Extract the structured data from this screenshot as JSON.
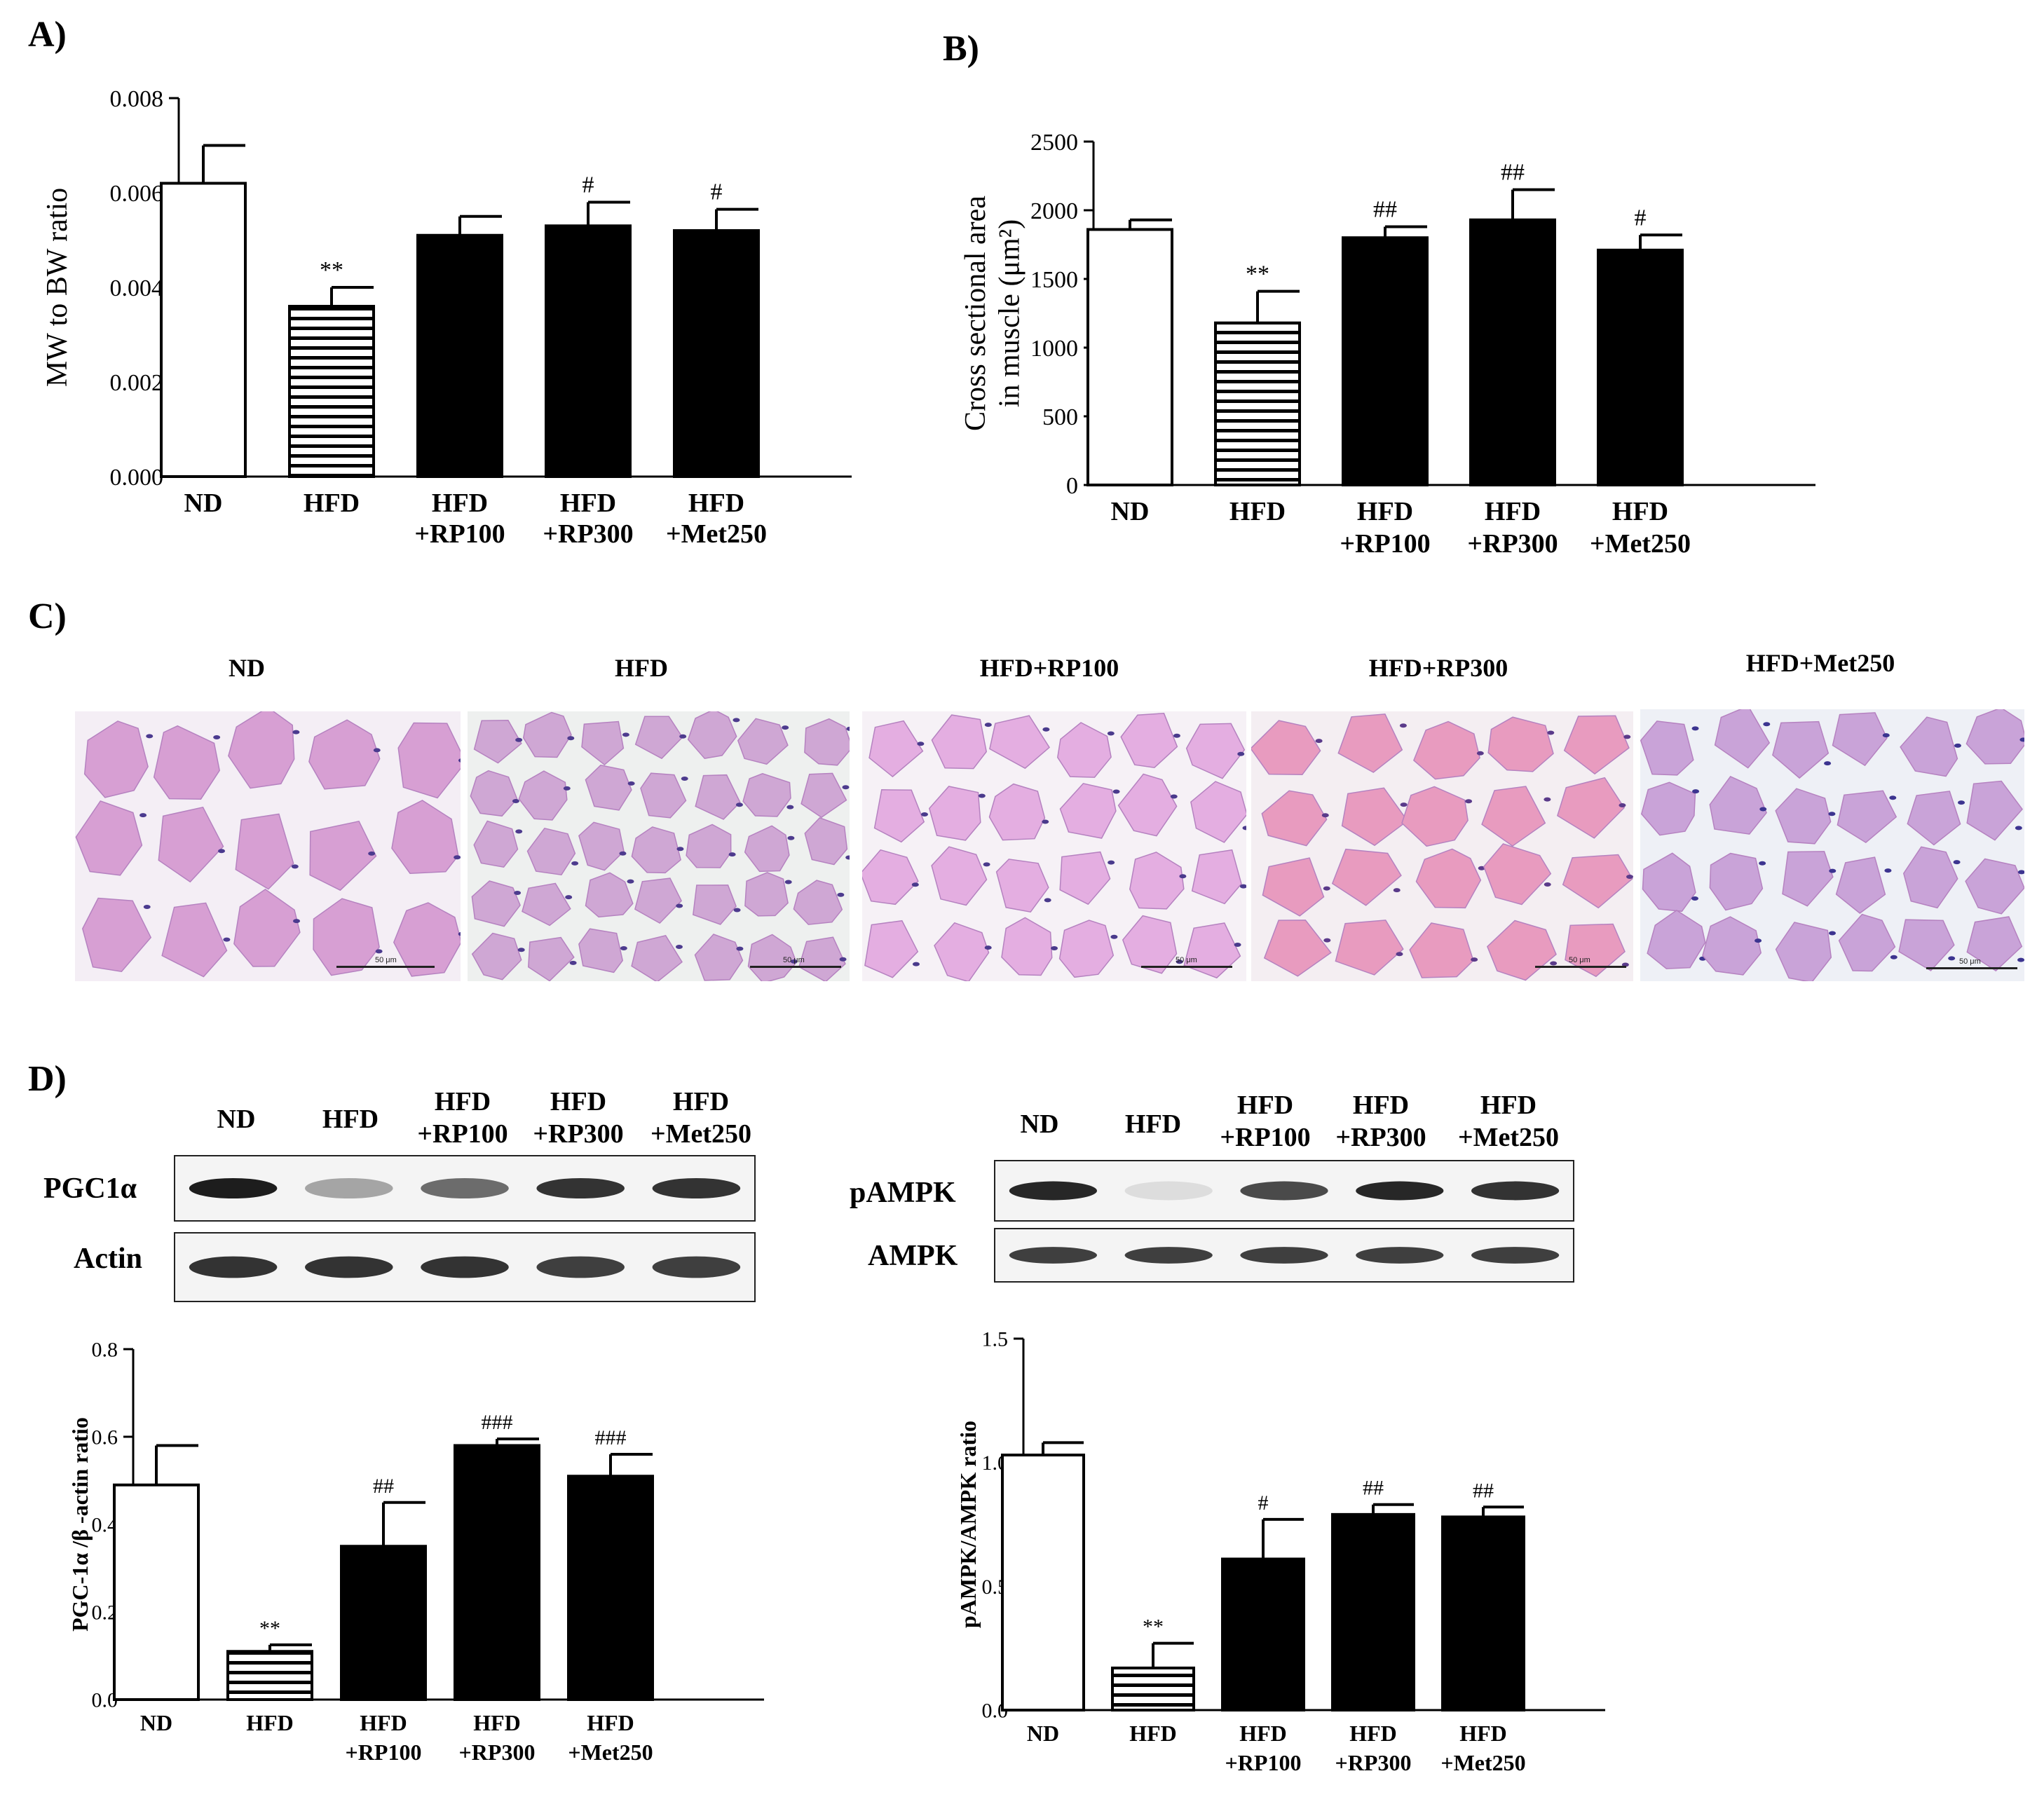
{
  "panels": {
    "a": "A)",
    "b": "B)",
    "c": "C)",
    "d": "D)"
  },
  "chart_data": [
    {
      "id": "chartA",
      "type": "bar",
      "categories": [
        "ND",
        "HFD",
        "HFD +RP100",
        "HFD +RP300",
        "HFD +Met250"
      ],
      "category_lines": [
        [
          "ND"
        ],
        [
          "HFD"
        ],
        [
          "HFD",
          "+RP100"
        ],
        [
          "HFD",
          "+RP300"
        ],
        [
          "HFD",
          "+Met250"
        ]
      ],
      "values": [
        0.0062,
        0.0036,
        0.0051,
        0.0053,
        0.0052
      ],
      "errors": [
        0.0008,
        0.0004,
        0.0004,
        0.0005,
        0.00045
      ],
      "fills": [
        "white",
        "stripe",
        "black",
        "black",
        "black"
      ],
      "annotations": [
        "",
        "**",
        "",
        "#",
        "#"
      ],
      "ylabel": "MW to BW ratio",
      "ylim": [
        0,
        0.008
      ],
      "yticks": [
        "0.000",
        "0.002",
        "0.004",
        "0.006",
        "0.008"
      ]
    },
    {
      "id": "chartB",
      "type": "bar",
      "categories": [
        "ND",
        "HFD",
        "HFD +RP100",
        "HFD +RP300",
        "HFD +Met250"
      ],
      "category_lines": [
        [
          "ND"
        ],
        [
          "HFD"
        ],
        [
          "HFD",
          "+RP100"
        ],
        [
          "HFD",
          "+RP300"
        ],
        [
          "HFD",
          "+Met250"
        ]
      ],
      "values": [
        1860,
        1180,
        1800,
        1930,
        1710
      ],
      "errors": [
        70,
        230,
        80,
        220,
        110
      ],
      "fills": [
        "white",
        "stripe",
        "black",
        "black",
        "black"
      ],
      "annotations": [
        "",
        "**",
        "##",
        "##",
        "#"
      ],
      "ylabel_lines": [
        "Cross sectional area",
        "in muscle (μm²)"
      ],
      "ylim": [
        0,
        2500
      ],
      "yticks": [
        "0",
        "500",
        "1000",
        "1500",
        "2000",
        "2500"
      ]
    },
    {
      "id": "chartD1",
      "type": "bar",
      "categories": [
        "ND",
        "HFD",
        "HFD +RP100",
        "HFD +RP300",
        "HFD +Met250"
      ],
      "category_lines": [
        [
          "ND"
        ],
        [
          "HFD"
        ],
        [
          "HFD",
          "+RP100"
        ],
        [
          "HFD",
          "+RP300"
        ],
        [
          "HFD",
          "+Met250"
        ]
      ],
      "values": [
        0.49,
        0.11,
        0.35,
        0.58,
        0.51
      ],
      "errors": [
        0.09,
        0.015,
        0.1,
        0.015,
        0.05
      ],
      "fills": [
        "white",
        "stripe",
        "black",
        "black",
        "black"
      ],
      "annotations": [
        "",
        "**",
        "##",
        "###",
        "###"
      ],
      "ylabel": "PGC-1α /β -actin ratio",
      "ylim": [
        0,
        0.8
      ],
      "yticks": [
        "0.0",
        "0.2",
        "0.4",
        "0.6",
        "0.8"
      ]
    },
    {
      "id": "chartD2",
      "type": "bar",
      "categories": [
        "ND",
        "HFD",
        "HFD +RP100",
        "HFD +RP300",
        "HFD +Met250"
      ],
      "category_lines": [
        [
          "ND"
        ],
        [
          "HFD"
        ],
        [
          "HFD",
          "+RP100"
        ],
        [
          "HFD",
          "+RP300"
        ],
        [
          "HFD",
          "+Met250"
        ]
      ],
      "values": [
        1.03,
        0.17,
        0.61,
        0.79,
        0.78
      ],
      "errors": [
        0.05,
        0.1,
        0.16,
        0.04,
        0.04
      ],
      "fills": [
        "white",
        "stripe",
        "black",
        "black",
        "black"
      ],
      "annotations": [
        "",
        "**",
        "#",
        "##",
        "##"
      ],
      "ylabel": "pAMPK/AMPK ratio",
      "ylim": [
        0,
        1.5
      ],
      "yticks": [
        "0.0",
        "0.5",
        "1.0",
        "1.5"
      ]
    }
  ],
  "histology": {
    "titles": [
      "ND",
      "HFD",
      "HFD+RP100",
      "HFD+RP300",
      "HFD+Met250"
    ],
    "scale_label": "50 μm"
  },
  "blots": {
    "left_headers": [
      [
        "ND"
      ],
      [
        "HFD"
      ],
      [
        "HFD",
        "+RP100"
      ],
      [
        "HFD",
        "+RP300"
      ],
      [
        "HFD",
        "+Met250"
      ]
    ],
    "right_headers": [
      [
        "ND"
      ],
      [
        "HFD"
      ],
      [
        "HFD",
        "+RP100"
      ],
      [
        "HFD",
        "+RP300"
      ],
      [
        "HFD",
        "+Met250"
      ]
    ],
    "left_rows": [
      "PGC1α",
      "Actin"
    ],
    "right_rows": [
      "pAMPK",
      "AMPK"
    ],
    "band_intensity": {
      "PGC1α": [
        0.95,
        0.35,
        0.6,
        0.85,
        0.85
      ],
      "Actin": [
        0.85,
        0.85,
        0.85,
        0.8,
        0.8
      ],
      "pAMPK": [
        0.9,
        0.1,
        0.75,
        0.9,
        0.85
      ],
      "AMPK": [
        0.8,
        0.8,
        0.8,
        0.8,
        0.8
      ]
    }
  }
}
